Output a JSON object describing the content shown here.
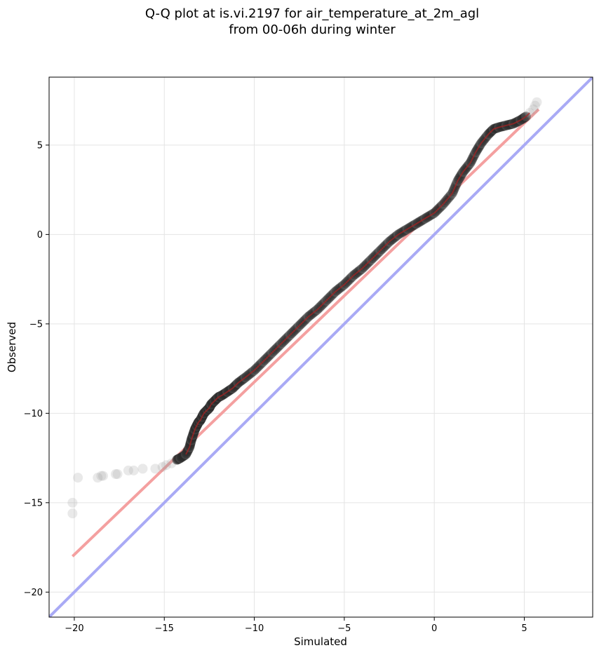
{
  "chart_data": {
    "type": "scatter",
    "title_lines": [
      "Q-Q plot at is.vi.2197 for air_temperature_at_2m_agl",
      "from 00-06h during winter"
    ],
    "xlabel": "Simulated",
    "ylabel": "Observed",
    "xlim": [
      -21.4,
      8.8
    ],
    "ylim": [
      -21.4,
      8.8
    ],
    "xticks": [
      -20,
      -15,
      -10,
      -5,
      0,
      5
    ],
    "yticks": [
      -20,
      -15,
      -10,
      -5,
      0,
      5
    ],
    "xtick_labels": [
      "−20",
      "−15",
      "−10",
      "−5",
      "0",
      "5"
    ],
    "ytick_labels": [
      "−20",
      "−15",
      "−10",
      "−5",
      "0",
      "5"
    ],
    "grid": true,
    "colors": {
      "points": "#555555",
      "fit_line": "#f4a0a0",
      "identity_line": "#a9aaf5",
      "dense_trend": "#aa2222"
    },
    "reference_lines": [
      {
        "name": "identity",
        "x": [
          -21.4,
          8.8
        ],
        "y": [
          -21.4,
          8.8
        ]
      },
      {
        "name": "fit",
        "x": [
          -20.1,
          5.8
        ],
        "y": [
          -18.0,
          7.0
        ]
      }
    ],
    "series": [
      {
        "x": [
          -20.1,
          -20.1,
          -19.8,
          -18.7,
          -18.5,
          -18.4,
          -17.7,
          -17.6,
          -17.0,
          -16.7,
          -16.2,
          -15.5,
          -15.1,
          -14.9,
          -14.6,
          -14.3,
          -14.1,
          -13.8,
          -13.6,
          -13.5,
          -13.4,
          -13.3,
          -13.2,
          -13.1,
          -13.0,
          -12.9,
          -12.8,
          -12.6,
          -12.5,
          -12.4,
          -12.2,
          -12.0,
          -11.8,
          -11.5,
          -11.2,
          -10.9,
          -10.5,
          -10.0,
          -9.5,
          -9.0,
          -8.5,
          -8.0,
          -7.5,
          -7.0,
          -6.5,
          -6.0,
          -5.5,
          -5.0,
          -4.5,
          -4.0,
          -3.5,
          -3.0,
          -2.5,
          -2.0,
          -1.5,
          -1.0,
          -0.5,
          0.0,
          0.5,
          1.0,
          1.3,
          1.6,
          2.0,
          2.3,
          2.6,
          3.0,
          3.3,
          3.6,
          4.0,
          4.4,
          4.8,
          5.1,
          5.3,
          5.5,
          5.6,
          5.7
        ],
        "y": [
          -15.6,
          -15.0,
          -13.6,
          -13.6,
          -13.5,
          -13.5,
          -13.4,
          -13.4,
          -13.2,
          -13.2,
          -13.1,
          -13.1,
          -13.0,
          -12.9,
          -12.8,
          -12.6,
          -12.5,
          -12.3,
          -11.9,
          -11.5,
          -11.2,
          -10.9,
          -10.7,
          -10.5,
          -10.4,
          -10.2,
          -10.0,
          -9.8,
          -9.7,
          -9.5,
          -9.3,
          -9.1,
          -9.0,
          -8.8,
          -8.6,
          -8.3,
          -8.0,
          -7.6,
          -7.1,
          -6.6,
          -6.1,
          -5.6,
          -5.1,
          -4.6,
          -4.2,
          -3.7,
          -3.2,
          -2.8,
          -2.3,
          -1.9,
          -1.4,
          -0.9,
          -0.4,
          0.0,
          0.3,
          0.6,
          0.9,
          1.2,
          1.7,
          2.3,
          3.0,
          3.5,
          4.0,
          4.6,
          5.1,
          5.6,
          5.9,
          6.0,
          6.1,
          6.2,
          6.4,
          6.6,
          6.8,
          7.0,
          7.2,
          7.4
        ]
      }
    ]
  }
}
